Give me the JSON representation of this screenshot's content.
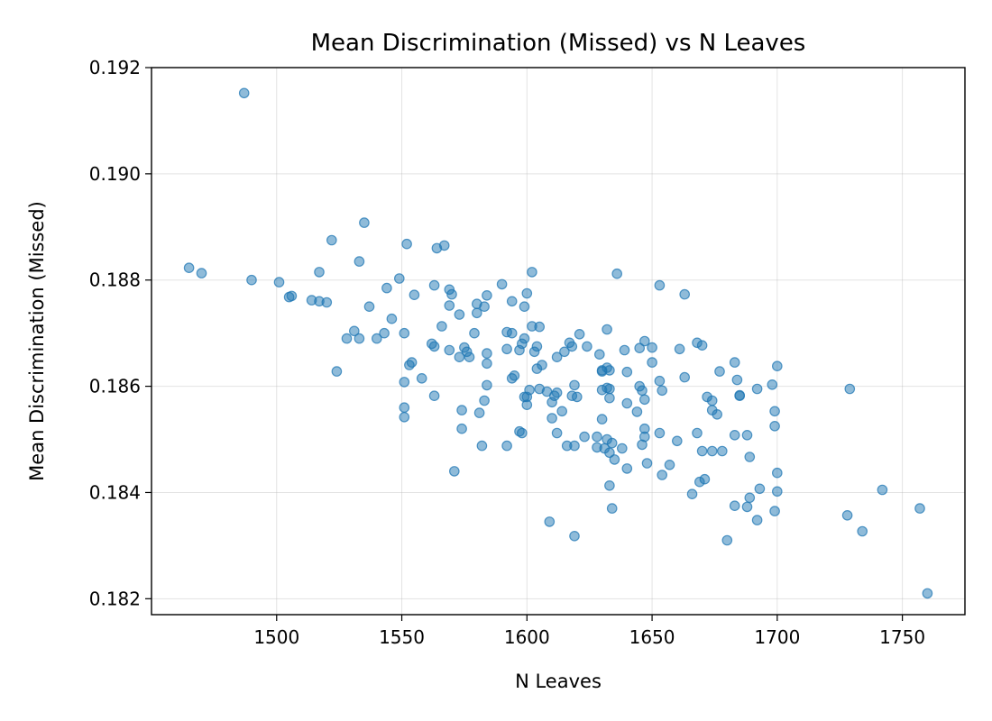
{
  "chart_data": {
    "type": "scatter",
    "title": "Mean Discrimination (Missed) vs N Leaves",
    "xlabel": "N Leaves",
    "ylabel": "Mean Discrimination (Missed)",
    "xlim": [
      1450,
      1775
    ],
    "ylim": [
      0.1817,
      0.192
    ],
    "xticks": [
      1500,
      1550,
      1600,
      1650,
      1700,
      1750
    ],
    "yticks": [
      0.182,
      0.184,
      0.186,
      0.188,
      0.19,
      0.192
    ],
    "ytick_labels": [
      "0.182",
      "0.184",
      "0.186",
      "0.188",
      "0.190",
      "0.192"
    ],
    "grid": true,
    "color": "#1f77b4",
    "points": [
      [
        1465,
        0.18823
      ],
      [
        1470,
        0.18813
      ],
      [
        1487,
        0.19152
      ],
      [
        1490,
        0.188
      ],
      [
        1501,
        0.18796
      ],
      [
        1505,
        0.18768
      ],
      [
        1506,
        0.1877
      ],
      [
        1514,
        0.18762
      ],
      [
        1517,
        0.1876
      ],
      [
        1517,
        0.18815
      ],
      [
        1520,
        0.18758
      ],
      [
        1522,
        0.18875
      ],
      [
        1524,
        0.18628
      ],
      [
        1528,
        0.1869
      ],
      [
        1531,
        0.18704
      ],
      [
        1533,
        0.1869
      ],
      [
        1533,
        0.18835
      ],
      [
        1535,
        0.18908
      ],
      [
        1537,
        0.1875
      ],
      [
        1540,
        0.1869
      ],
      [
        1543,
        0.187
      ],
      [
        1544,
        0.18785
      ],
      [
        1546,
        0.18727
      ],
      [
        1549,
        0.18803
      ],
      [
        1551,
        0.187
      ],
      [
        1551,
        0.18608
      ],
      [
        1551,
        0.1856
      ],
      [
        1551,
        0.18542
      ],
      [
        1552,
        0.18868
      ],
      [
        1553,
        0.1864
      ],
      [
        1554,
        0.18645
      ],
      [
        1555,
        0.18772
      ],
      [
        1558,
        0.18615
      ],
      [
        1562,
        0.1868
      ],
      [
        1563,
        0.1879
      ],
      [
        1563,
        0.18675
      ],
      [
        1563,
        0.18582
      ],
      [
        1564,
        0.1886
      ],
      [
        1566,
        0.18713
      ],
      [
        1567,
        0.18865
      ],
      [
        1569,
        0.18668
      ],
      [
        1569,
        0.18782
      ],
      [
        1569,
        0.18752
      ],
      [
        1570,
        0.18773
      ],
      [
        1571,
        0.1844
      ],
      [
        1573,
        0.18655
      ],
      [
        1573,
        0.18735
      ],
      [
        1574,
        0.18555
      ],
      [
        1574,
        0.1852
      ],
      [
        1575,
        0.18673
      ],
      [
        1576,
        0.18665
      ],
      [
        1577,
        0.18655
      ],
      [
        1579,
        0.187
      ],
      [
        1580,
        0.18755
      ],
      [
        1580,
        0.18738
      ],
      [
        1581,
        0.1855
      ],
      [
        1582,
        0.18488
      ],
      [
        1583,
        0.1875
      ],
      [
        1583,
        0.18573
      ],
      [
        1584,
        0.18771
      ],
      [
        1584,
        0.18643
      ],
      [
        1584,
        0.18662
      ],
      [
        1584,
        0.18602
      ],
      [
        1590,
        0.18792
      ],
      [
        1592,
        0.18702
      ],
      [
        1592,
        0.1867
      ],
      [
        1592,
        0.18488
      ],
      [
        1594,
        0.1876
      ],
      [
        1594,
        0.187
      ],
      [
        1594,
        0.18615
      ],
      [
        1595,
        0.1862
      ],
      [
        1597,
        0.18668
      ],
      [
        1597,
        0.18515
      ],
      [
        1598,
        0.1868
      ],
      [
        1598,
        0.18512
      ],
      [
        1599,
        0.1869
      ],
      [
        1599,
        0.1875
      ],
      [
        1599,
        0.1858
      ],
      [
        1600,
        0.18775
      ],
      [
        1600,
        0.1858
      ],
      [
        1600,
        0.18565
      ],
      [
        1601,
        0.18593
      ],
      [
        1602,
        0.18815
      ],
      [
        1602,
        0.18713
      ],
      [
        1603,
        0.18665
      ],
      [
        1604,
        0.18633
      ],
      [
        1604,
        0.18675
      ],
      [
        1605,
        0.18595
      ],
      [
        1605,
        0.18712
      ],
      [
        1606,
        0.1864
      ],
      [
        1608,
        0.1859
      ],
      [
        1609,
        0.18345
      ],
      [
        1610,
        0.1857
      ],
      [
        1610,
        0.1854
      ],
      [
        1611,
        0.18582
      ],
      [
        1612,
        0.18655
      ],
      [
        1612,
        0.18588
      ],
      [
        1612,
        0.18512
      ],
      [
        1614,
        0.18553
      ],
      [
        1615,
        0.18665
      ],
      [
        1616,
        0.18488
      ],
      [
        1617,
        0.18682
      ],
      [
        1618,
        0.18675
      ],
      [
        1618,
        0.18582
      ],
      [
        1619,
        0.18602
      ],
      [
        1619,
        0.18488
      ],
      [
        1619,
        0.18318
      ],
      [
        1620,
        0.1858
      ],
      [
        1621,
        0.18698
      ],
      [
        1623,
        0.18505
      ],
      [
        1624,
        0.18675
      ],
      [
        1628,
        0.18505
      ],
      [
        1628,
        0.18485
      ],
      [
        1629,
        0.1866
      ],
      [
        1630,
        0.1863
      ],
      [
        1630,
        0.18628
      ],
      [
        1630,
        0.18538
      ],
      [
        1630,
        0.18593
      ],
      [
        1631,
        0.18483
      ],
      [
        1632,
        0.18707
      ],
      [
        1632,
        0.18635
      ],
      [
        1632,
        0.18597
      ],
      [
        1632,
        0.185
      ],
      [
        1633,
        0.18413
      ],
      [
        1633,
        0.18475
      ],
      [
        1633,
        0.1863
      ],
      [
        1633,
        0.18595
      ],
      [
        1633,
        0.18578
      ],
      [
        1634,
        0.1837
      ],
      [
        1634,
        0.18493
      ],
      [
        1635,
        0.18462
      ],
      [
        1636,
        0.18812
      ],
      [
        1638,
        0.18483
      ],
      [
        1639,
        0.18668
      ],
      [
        1640,
        0.18568
      ],
      [
        1640,
        0.18627
      ],
      [
        1640,
        0.18445
      ],
      [
        1644,
        0.18552
      ],
      [
        1645,
        0.186
      ],
      [
        1645,
        0.18672
      ],
      [
        1646,
        0.1849
      ],
      [
        1646,
        0.18592
      ],
      [
        1647,
        0.18685
      ],
      [
        1647,
        0.18575
      ],
      [
        1647,
        0.1852
      ],
      [
        1647,
        0.18505
      ],
      [
        1648,
        0.18455
      ],
      [
        1650,
        0.18673
      ],
      [
        1650,
        0.18645
      ],
      [
        1653,
        0.1879
      ],
      [
        1653,
        0.1861
      ],
      [
        1653,
        0.18512
      ],
      [
        1654,
        0.18592
      ],
      [
        1654,
        0.18433
      ],
      [
        1657,
        0.18452
      ],
      [
        1660,
        0.18497
      ],
      [
        1661,
        0.1867
      ],
      [
        1663,
        0.18617
      ],
      [
        1663,
        0.18773
      ],
      [
        1666,
        0.18397
      ],
      [
        1668,
        0.18682
      ],
      [
        1668,
        0.18512
      ],
      [
        1669,
        0.1842
      ],
      [
        1670,
        0.18677
      ],
      [
        1670,
        0.18478
      ],
      [
        1671,
        0.18425
      ],
      [
        1672,
        0.1858
      ],
      [
        1674,
        0.18573
      ],
      [
        1674,
        0.18555
      ],
      [
        1674,
        0.18478
      ],
      [
        1676,
        0.18547
      ],
      [
        1677,
        0.18628
      ],
      [
        1678,
        0.18478
      ],
      [
        1680,
        0.1831
      ],
      [
        1683,
        0.18645
      ],
      [
        1683,
        0.18508
      ],
      [
        1683,
        0.18375
      ],
      [
        1684,
        0.18612
      ],
      [
        1685,
        0.18583
      ],
      [
        1685,
        0.18582
      ],
      [
        1688,
        0.18508
      ],
      [
        1688,
        0.18373
      ],
      [
        1689,
        0.1839
      ],
      [
        1689,
        0.18467
      ],
      [
        1692,
        0.18348
      ],
      [
        1692,
        0.18595
      ],
      [
        1693,
        0.18407
      ],
      [
        1698,
        0.18603
      ],
      [
        1699,
        0.18553
      ],
      [
        1699,
        0.18525
      ],
      [
        1699,
        0.18365
      ],
      [
        1700,
        0.18638
      ],
      [
        1700,
        0.18437
      ],
      [
        1700,
        0.18402
      ],
      [
        1728,
        0.18357
      ],
      [
        1729,
        0.18595
      ],
      [
        1734,
        0.18327
      ],
      [
        1742,
        0.18405
      ],
      [
        1757,
        0.1837
      ],
      [
        1760,
        0.1821
      ]
    ]
  }
}
